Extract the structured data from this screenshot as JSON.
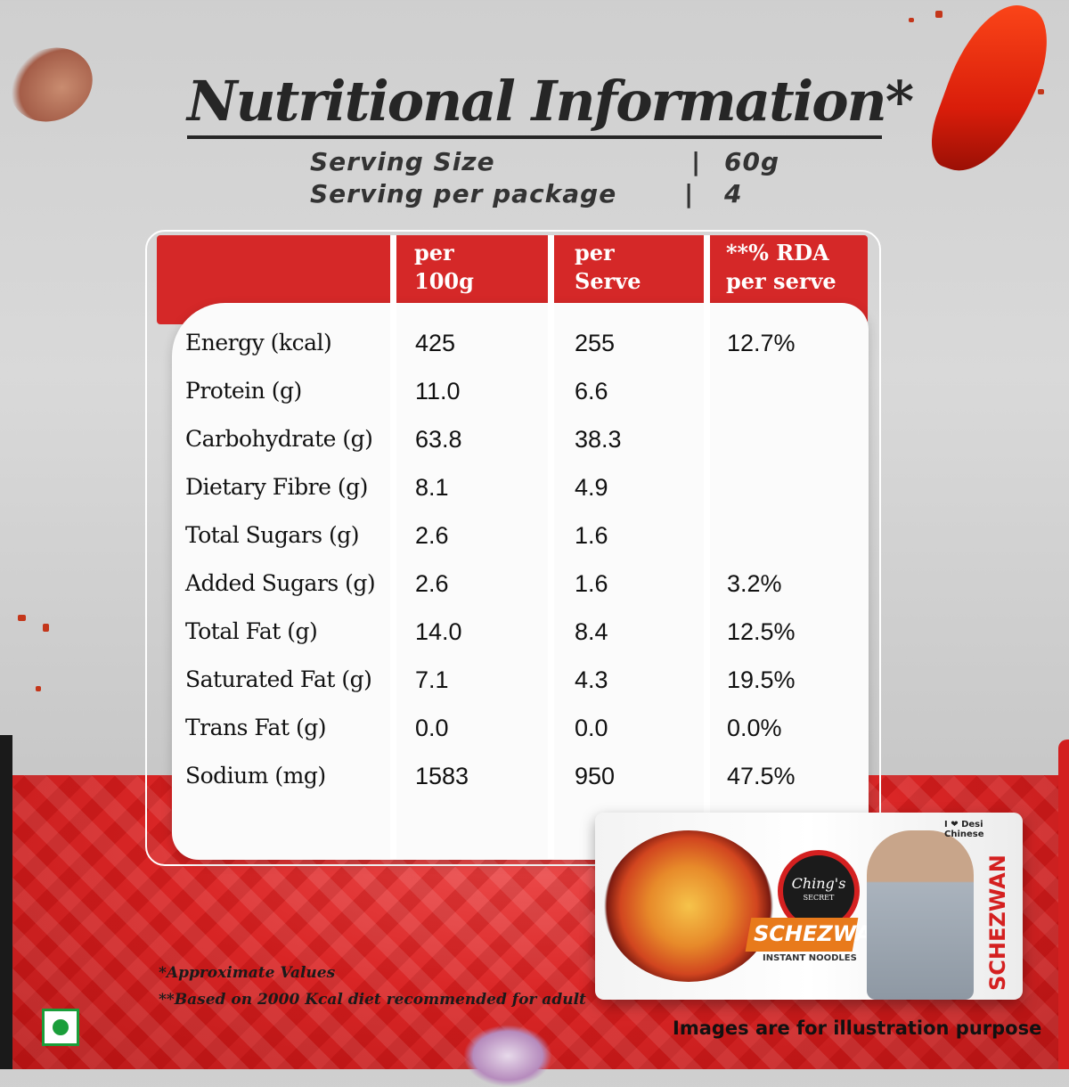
{
  "title": "Nutritional Information*",
  "serving": [
    {
      "label": "Serving Size",
      "sep": "|",
      "value": "60g"
    },
    {
      "label": "Serving per package",
      "sep": "|",
      "value": "4"
    }
  ],
  "table": {
    "headers": [
      {
        "line1": "per",
        "line2": "100g"
      },
      {
        "line1": "per",
        "line2": "Serve"
      },
      {
        "line1": "**% RDA",
        "line2": "per serve"
      }
    ],
    "rows": [
      {
        "name": "Energy (kcal)",
        "per100": "425",
        "perServe": "255",
        "rda": "12.7%"
      },
      {
        "name": "Protein (g)",
        "per100": "11.0",
        "perServe": "6.6",
        "rda": ""
      },
      {
        "name": "Carbohydrate (g)",
        "per100": "63.8",
        "perServe": "38.3",
        "rda": ""
      },
      {
        "name": "Dietary Fibre (g)",
        "per100": "8.1",
        "perServe": "4.9",
        "rda": ""
      },
      {
        "name": "Total Sugars (g)",
        "per100": "2.6",
        "perServe": "1.6",
        "rda": ""
      },
      {
        "name": "Added Sugars (g)",
        "per100": "2.6",
        "perServe": "1.6",
        "rda": "3.2%"
      },
      {
        "name": "Total Fat (g)",
        "per100": "14.0",
        "perServe": "8.4",
        "rda": "12.5%"
      },
      {
        "name": "Saturated Fat (g)",
        "per100": "7.1",
        "perServe": "4.3",
        "rda": "19.5%"
      },
      {
        "name": "Trans Fat (g)",
        "per100": "0.0",
        "perServe": "0.0",
        "rda": "0.0%"
      },
      {
        "name": "Sodium (mg)",
        "per100": "1583",
        "perServe": "950",
        "rda": "47.5%"
      }
    ]
  },
  "package": {
    "brand": "Ching's",
    "brand_sub": "SECRET",
    "flavor": "SCHEZWAN",
    "product": "INSTANT NOODLES",
    "tagline": "I ❤ Desi Chinese"
  },
  "footnotes": [
    "*Approximate Values",
    "**Based on 2000 Kcal diet recommended for adult"
  ],
  "disclaimer": "Images are for illustration purpose",
  "colors": {
    "accent": "#d52828",
    "veg_mark": "#1a9e3a",
    "text": "#262626"
  },
  "icons": [
    "veg-mark-icon"
  ]
}
